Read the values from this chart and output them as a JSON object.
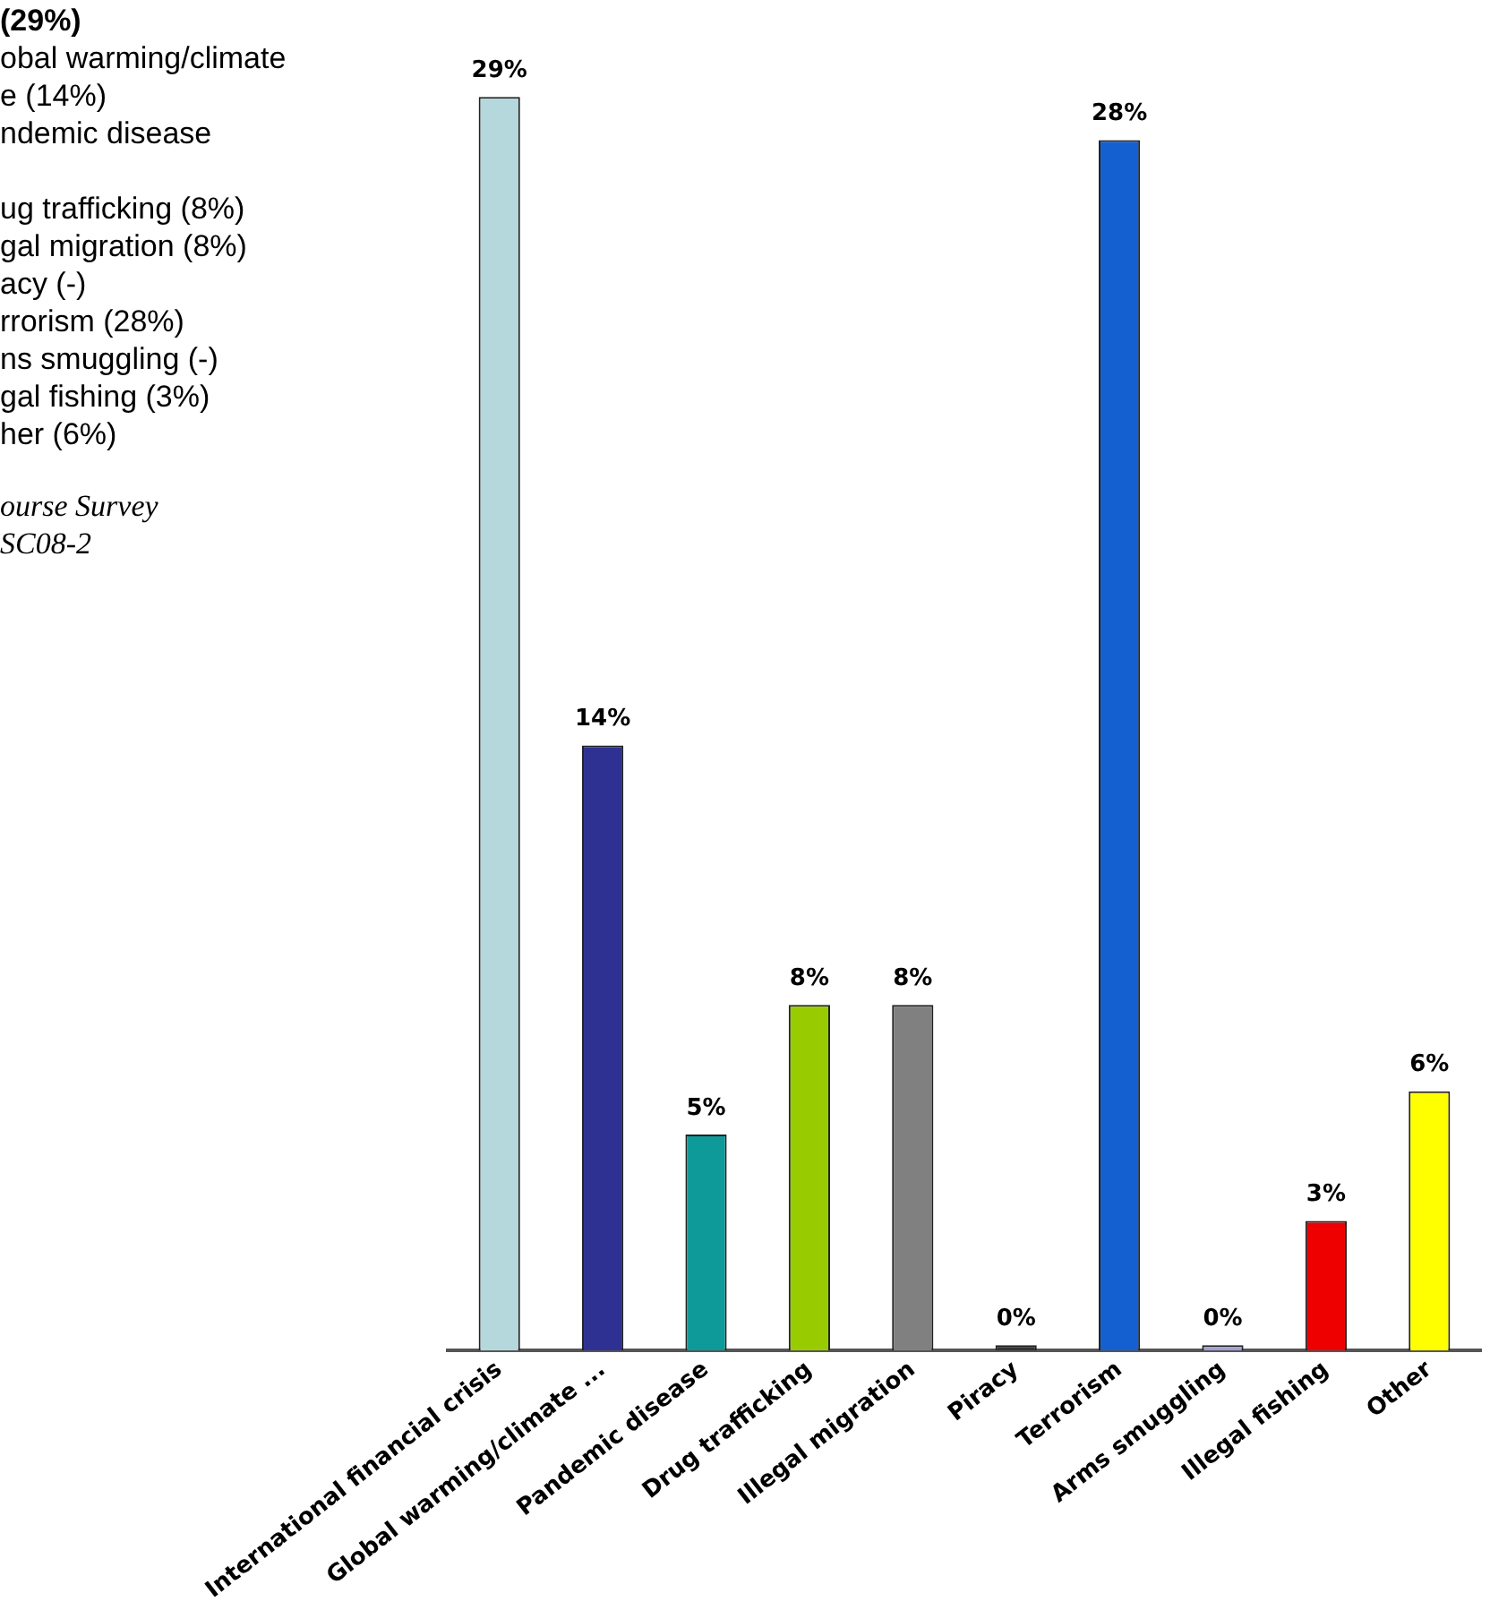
{
  "chart_data": {
    "type": "bar",
    "categories": [
      "International financial crisis",
      "Global warming/climate ...",
      "Pandemic disease",
      "Drug trafficking",
      "Illegal migration",
      "Piracy",
      "Terrorism",
      "Arms smuggling",
      "Illegal fishing",
      "Other"
    ],
    "values": [
      29,
      14,
      5,
      8,
      8,
      0,
      28,
      0,
      3,
      6
    ],
    "colors": [
      "#b4d8dc",
      "#2e3192",
      "#0f9a9a",
      "#99cc00",
      "#808080",
      "#333333",
      "#1560d0",
      "#a0a0d0",
      "#ee0000",
      "#ffff00"
    ],
    "data_labels": true,
    "value_labels": [
      "29%",
      "14%",
      "5%",
      "8%",
      "8%",
      "0%",
      "28%",
      "0%",
      "3%",
      "6%"
    ],
    "legend": false,
    "grid": false,
    "annotations": [
      "(29%)",
      "obal warming/climate",
      "e (14%)",
      "ndemic disease",
      "ug trafficking (8%)",
      "gal migration (8%)",
      "acy (-)",
      "rrorism (28%)",
      "ns smuggling (-)",
      "gal fishing (3%)",
      "her (6%)",
      "ourse Survey",
      "SC08-2"
    ]
  }
}
